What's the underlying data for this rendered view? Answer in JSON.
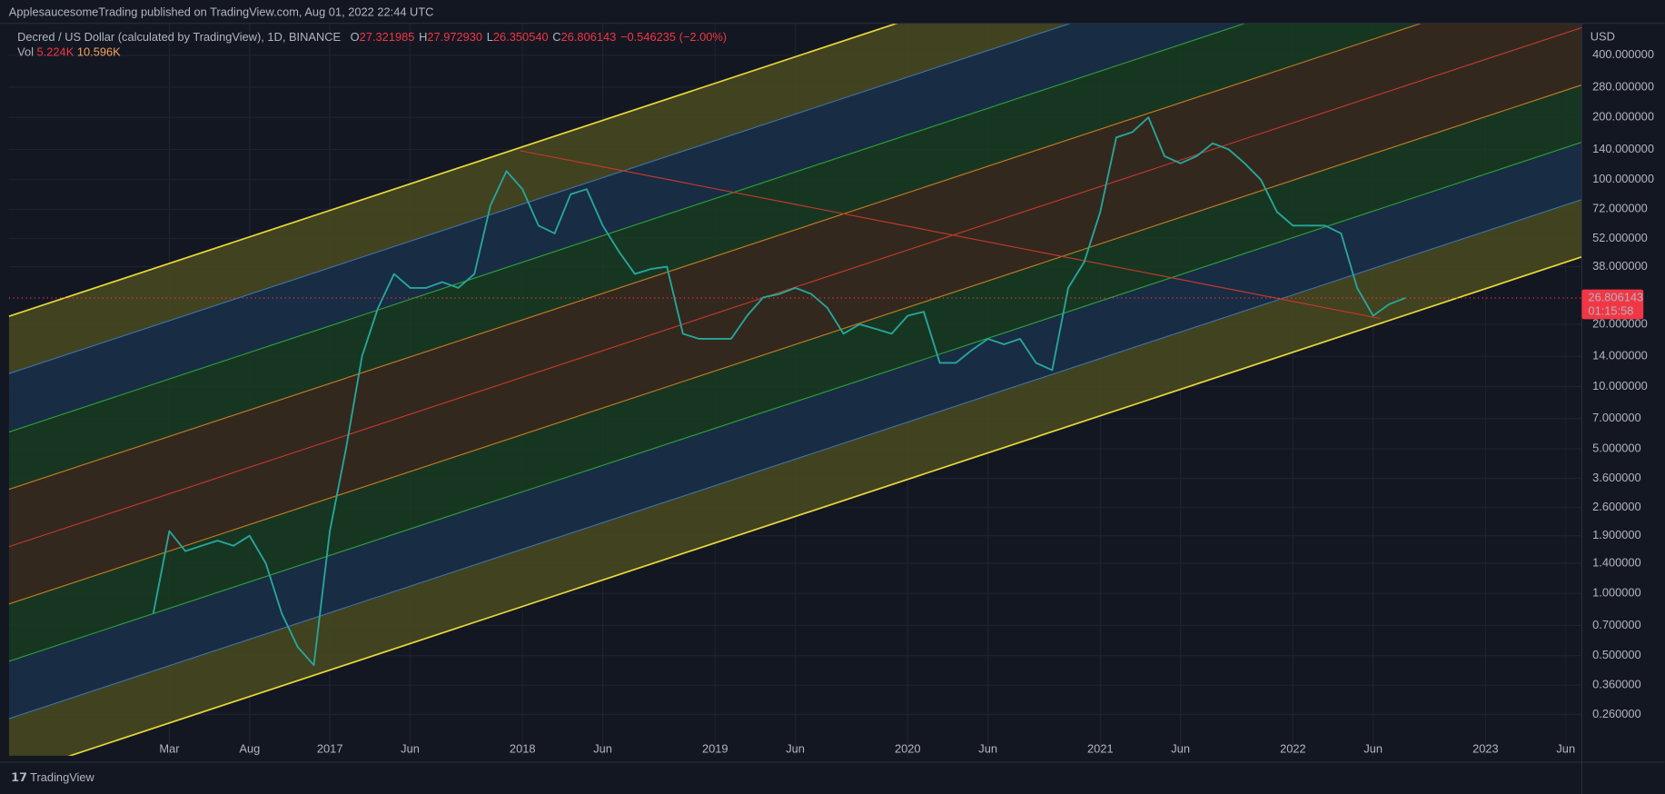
{
  "header": {
    "publisher": "ApplesaucesomeTrading published on TradingView.com, Aug 01, 2022 22:44 UTC"
  },
  "footer": {
    "brand": "TradingView"
  },
  "chart_data": {
    "type": "line",
    "title": "Decred / US Dollar (calculated by TradingView), 1D, BINANCE",
    "ohlc": [
      {
        "key": "O",
        "value": 27.321985,
        "label": "27.321985"
      },
      {
        "key": "H",
        "value": 27.97293,
        "label": "27.972930"
      },
      {
        "key": "L",
        "value": 26.35054,
        "label": "26.350540"
      },
      {
        "key": "C",
        "value": 26.806143,
        "label": "26.806143"
      }
    ],
    "change": "−0.546235 (−2.00%)",
    "volume_label": "Vol",
    "volume_values": [
      "5.224K",
      "10.596K"
    ],
    "y_axis_label": "USD",
    "log_scale": true,
    "grid": true,
    "color": "#26a69a",
    "last_price": {
      "value": 26.806143,
      "label": "26.806143"
    },
    "last_price_color": "#f23645",
    "countdown": "01:15:58",
    "xlim": [
      "2015-05",
      "2023-07"
    ],
    "xticks": [
      {
        "value": "2016-03",
        "label": "Mar"
      },
      {
        "value": "2016-08",
        "label": "Aug"
      },
      {
        "value": "2017-01",
        "label": "2017"
      },
      {
        "value": "2017-06",
        "label": "Jun"
      },
      {
        "value": "2018-01",
        "label": "2018"
      },
      {
        "value": "2018-06",
        "label": "Jun"
      },
      {
        "value": "2019-01",
        "label": "2019"
      },
      {
        "value": "2019-06",
        "label": "Jun"
      },
      {
        "value": "2020-01",
        "label": "2020"
      },
      {
        "value": "2020-06",
        "label": "Jun"
      },
      {
        "value": "2021-01",
        "label": "2021"
      },
      {
        "value": "2021-06",
        "label": "Jun"
      },
      {
        "value": "2022-01",
        "label": "2022"
      },
      {
        "value": "2022-06",
        "label": "Jun"
      },
      {
        "value": "2023-01",
        "label": "2023"
      },
      {
        "value": "2023-06",
        "label": "Jun"
      }
    ],
    "ylim": [
      0.164,
      570
    ],
    "yticks": [
      {
        "value": 400,
        "label": "400.000000"
      },
      {
        "value": 280,
        "label": "280.000000"
      },
      {
        "value": 200,
        "label": "200.000000"
      },
      {
        "value": 140,
        "label": "140.000000"
      },
      {
        "value": 100,
        "label": "100.000000"
      },
      {
        "value": 72,
        "label": "72.000000"
      },
      {
        "value": 52,
        "label": "52.000000"
      },
      {
        "value": 38,
        "label": "38.000000"
      },
      {
        "value": 20,
        "label": "20.000000"
      },
      {
        "value": 14,
        "label": "14.000000"
      },
      {
        "value": 10,
        "label": "10.000000"
      },
      {
        "value": 7,
        "label": "7.000000"
      },
      {
        "value": 5,
        "label": "5.000000"
      },
      {
        "value": 3.6,
        "label": "3.600000"
      },
      {
        "value": 2.6,
        "label": "2.600000"
      },
      {
        "value": 1.9,
        "label": "1.900000"
      },
      {
        "value": 1.4,
        "label": "1.400000"
      },
      {
        "value": 1,
        "label": "1.000000"
      },
      {
        "value": 0.7,
        "label": "0.700000"
      },
      {
        "value": 0.5,
        "label": "0.500000"
      },
      {
        "value": 0.36,
        "label": "0.360000"
      },
      {
        "value": 0.26,
        "label": "0.260000"
      }
    ],
    "x": [
      "2016-02",
      "2016-03",
      "2016-04",
      "2016-05",
      "2016-06",
      "2016-07",
      "2016-08",
      "2016-09",
      "2016-10",
      "2016-11",
      "2016-12",
      "2017-01",
      "2017-02",
      "2017-03",
      "2017-04",
      "2017-05",
      "2017-06",
      "2017-07",
      "2017-08",
      "2017-09",
      "2017-10",
      "2017-11",
      "2017-12",
      "2018-01",
      "2018-02",
      "2018-03",
      "2018-04",
      "2018-05",
      "2018-06",
      "2018-07",
      "2018-08",
      "2018-09",
      "2018-10",
      "2018-11",
      "2018-12",
      "2019-01",
      "2019-02",
      "2019-03",
      "2019-04",
      "2019-05",
      "2019-06",
      "2019-07",
      "2019-08",
      "2019-09",
      "2019-10",
      "2019-11",
      "2019-12",
      "2020-01",
      "2020-02",
      "2020-03",
      "2020-04",
      "2020-05",
      "2020-06",
      "2020-07",
      "2020-08",
      "2020-09",
      "2020-10",
      "2020-11",
      "2020-12",
      "2021-01",
      "2021-02",
      "2021-03",
      "2021-04",
      "2021-05",
      "2021-06",
      "2021-07",
      "2021-08",
      "2021-09",
      "2021-10",
      "2021-11",
      "2021-12",
      "2022-01",
      "2022-02",
      "2022-03",
      "2022-04",
      "2022-05",
      "2022-06",
      "2022-07",
      "2022-08"
    ],
    "values": [
      0.8,
      2.0,
      1.6,
      1.7,
      1.8,
      1.7,
      1.9,
      1.4,
      0.8,
      0.55,
      0.45,
      2.0,
      5.0,
      14,
      24,
      35,
      30,
      30,
      32,
      30,
      35,
      75,
      110,
      90,
      60,
      55,
      85,
      90,
      60,
      45,
      35,
      37,
      38,
      18,
      17,
      17,
      17,
      22,
      27,
      28,
      30,
      28,
      24,
      18,
      20,
      19,
      18,
      22,
      23,
      13,
      13,
      15,
      17,
      16,
      17,
      13,
      12,
      30,
      40,
      70,
      160,
      170,
      200,
      130,
      120,
      130,
      150,
      140,
      120,
      100,
      70,
      60,
      60,
      60,
      55,
      30,
      22,
      25,
      26.806143
    ]
  }
}
